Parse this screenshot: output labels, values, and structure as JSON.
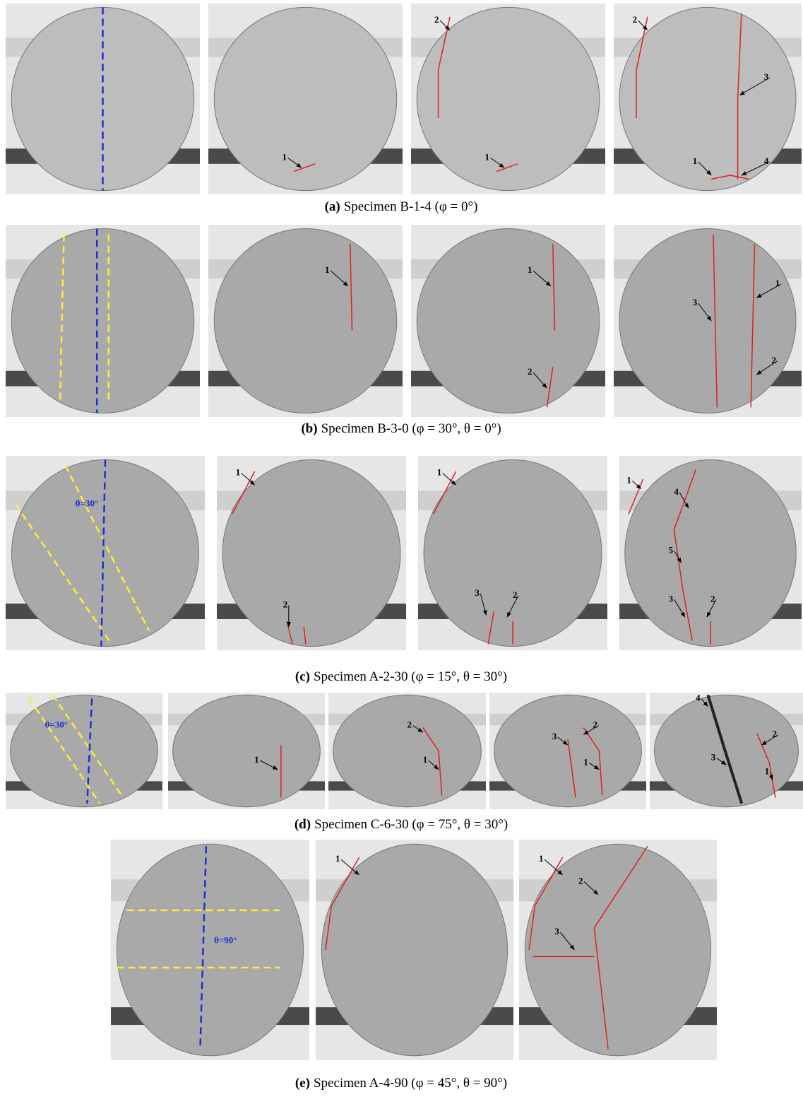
{
  "rows": [
    {
      "caption": {
        "tag": "(a)",
        "text": "Specimen B-1-4 (φ = 0°)"
      },
      "panels": [
        {
          "labels": []
        },
        {
          "labels": [
            "1"
          ]
        },
        {
          "labels": [
            "2",
            "1"
          ]
        },
        {
          "labels": [
            "2",
            "3",
            "1",
            "4"
          ]
        }
      ]
    },
    {
      "caption": {
        "tag": "(b)",
        "text": "Specimen B-3-0 (φ = 30°, θ = 0°)"
      },
      "panels": [
        {
          "labels": []
        },
        {
          "labels": [
            "1"
          ]
        },
        {
          "labels": [
            "1",
            "2"
          ]
        },
        {
          "labels": [
            "3",
            "1",
            "2"
          ]
        }
      ]
    },
    {
      "caption": {
        "tag": "(c)",
        "text": "Specimen A-2-30 (φ = 15°, θ = 30°)"
      },
      "panels": [
        {
          "labels": [
            "θ=30°"
          ]
        },
        {
          "labels": [
            "1",
            "2"
          ]
        },
        {
          "labels": [
            "1",
            "3",
            "2"
          ]
        },
        {
          "labels": [
            "1",
            "4",
            "5",
            "3",
            "2"
          ]
        }
      ]
    },
    {
      "caption": {
        "tag": "(d)",
        "text": "Specimen C-6-30 (φ = 75°, θ = 30°)"
      },
      "panels": [
        {
          "labels": [
            "θ=30°"
          ]
        },
        {
          "labels": [
            "1"
          ]
        },
        {
          "labels": [
            "2",
            "1"
          ]
        },
        {
          "labels": [
            "3",
            "2",
            "1"
          ]
        },
        {
          "labels": [
            "4",
            "3",
            "2",
            "1"
          ]
        }
      ]
    },
    {
      "caption": {
        "tag": "(e)",
        "text": "Specimen A-4-90 (φ = 45°, θ = 90°)"
      },
      "panels": [
        {
          "labels": [
            "θ=90°"
          ]
        },
        {
          "labels": [
            "1"
          ]
        },
        {
          "labels": [
            "1",
            "2",
            "3"
          ]
        }
      ]
    }
  ]
}
